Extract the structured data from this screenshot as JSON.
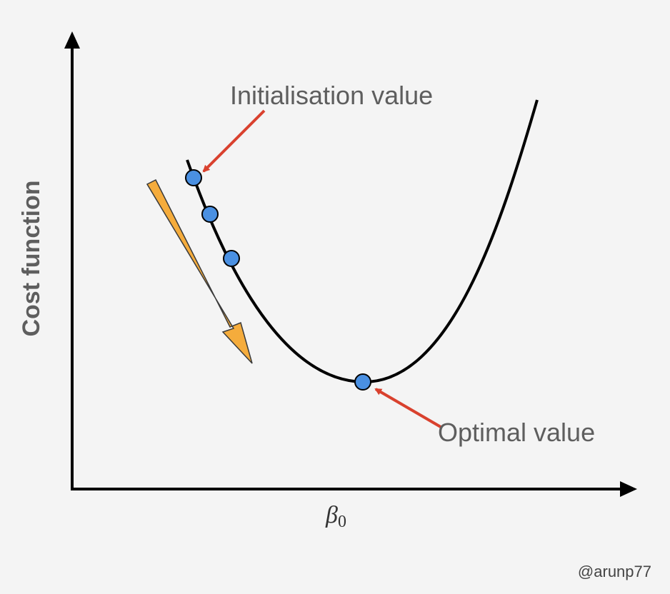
{
  "labels": {
    "y_axis": "Cost function",
    "x_axis_symbol": "β",
    "x_axis_subscript": "0",
    "init_annotation": "Initialisation value",
    "optimal_annotation": "Optimal value",
    "credit": "@arunp77"
  },
  "colors": {
    "background": "#f4f4f4",
    "axis": "#000000",
    "curve": "#000000",
    "point_fill": "#4a90e2",
    "annotation_arrow": "#d9412e",
    "descent_arrow_fill": "#f5ac3c"
  }
}
